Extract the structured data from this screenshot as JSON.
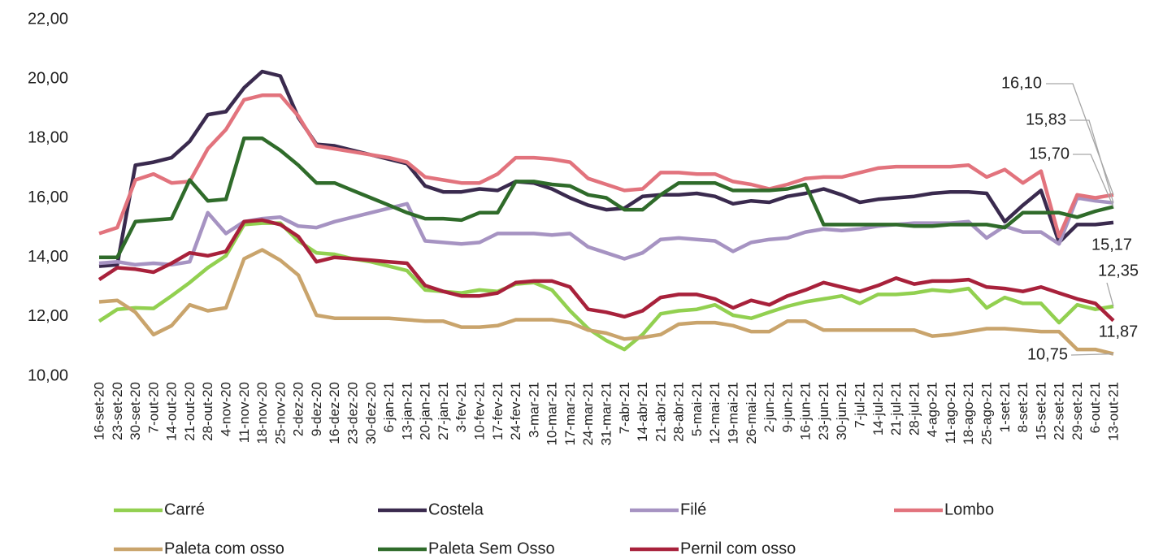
{
  "chart_data": {
    "type": "line",
    "categories": [
      "16-set-20",
      "23-set-20",
      "30-set-20",
      "7-out-20",
      "14-out-20",
      "21-out-20",
      "28-out-20",
      "4-nov-20",
      "11-nov-20",
      "18-nov-20",
      "25-nov-20",
      "2-dez-20",
      "9-dez-20",
      "16-dez-20",
      "23-dez-20",
      "30-dez-20",
      "6-jan-21",
      "13-jan-21",
      "20-jan-21",
      "27-jan-21",
      "3-fev-21",
      "10-fev-21",
      "17-fev-21",
      "24-fev-21",
      "3-mar-21",
      "10-mar-21",
      "17-mar-21",
      "24-mar-21",
      "31-mar-21",
      "7-abr-21",
      "14-abr-21",
      "21-abr-21",
      "28-abr-21",
      "5-mai-21",
      "12-mai-21",
      "19-mai-21",
      "26-mai-21",
      "2-jun-21",
      "9-jun-21",
      "16-jun-21",
      "23-jun-21",
      "30-jun-21",
      "7-jul-21",
      "14-jul-21",
      "21-jul-21",
      "28-jul-21",
      "4-ago-21",
      "11-ago-21",
      "18-ago-21",
      "25-ago-21",
      "1-set-21",
      "8-set-21",
      "15-set-21",
      "22-set-21",
      "29-set-21",
      "6-out-21",
      "13-out-21"
    ],
    "ylim": [
      10,
      22
    ],
    "yticks": [
      {
        "value": 10,
        "label": "10,00"
      },
      {
        "value": 12,
        "label": "12,00"
      },
      {
        "value": 14,
        "label": "14,00"
      },
      {
        "value": 16,
        "label": "16,00"
      },
      {
        "value": 18,
        "label": "18,00"
      },
      {
        "value": 20,
        "label": "20,00"
      },
      {
        "value": 22,
        "label": "22,00"
      }
    ],
    "grid": false,
    "legend": "bottom",
    "series": [
      {
        "name": "Carré",
        "color": "#92d050",
        "values": [
          11.85,
          12.25,
          12.3,
          12.28,
          12.7,
          13.15,
          13.65,
          14.05,
          15.1,
          15.15,
          15.15,
          14.55,
          14.15,
          14.1,
          13.95,
          13.85,
          13.7,
          13.55,
          12.9,
          12.85,
          12.8,
          12.9,
          12.85,
          13.1,
          13.15,
          12.9,
          12.2,
          11.6,
          11.2,
          10.9,
          11.4,
          12.1,
          12.2,
          12.25,
          12.4,
          12.05,
          11.95,
          12.15,
          12.35,
          12.5,
          12.6,
          12.7,
          12.45,
          12.75,
          12.75,
          12.8,
          12.9,
          12.85,
          12.95,
          12.3,
          12.65,
          12.45,
          12.45,
          11.8,
          12.4,
          12.25,
          12.35
        ],
        "value_labels": [
          null,
          null,
          null,
          null,
          null,
          null,
          null,
          null,
          null,
          null,
          null,
          null,
          null,
          null,
          null,
          null,
          null,
          null,
          null,
          null,
          null,
          null,
          null,
          null,
          null,
          null,
          null,
          null,
          null,
          null,
          null,
          null,
          null,
          null,
          null,
          null,
          null,
          null,
          null,
          null,
          null,
          null,
          null,
          null,
          null,
          null,
          null,
          null,
          null,
          null,
          null,
          null,
          null,
          null,
          null,
          null,
          "12,35"
        ]
      },
      {
        "name": "Costela",
        "color": "#3a2a4e",
        "values": [
          13.7,
          13.75,
          17.1,
          17.2,
          17.35,
          17.9,
          18.8,
          18.9,
          19.7,
          20.25,
          20.1,
          18.7,
          17.8,
          17.75,
          17.6,
          17.45,
          17.3,
          17.15,
          16.4,
          16.2,
          16.2,
          16.3,
          16.25,
          16.55,
          16.5,
          16.3,
          16.0,
          15.75,
          15.6,
          15.65,
          16.05,
          16.1,
          16.1,
          16.15,
          16.05,
          15.8,
          15.9,
          15.85,
          16.05,
          16.15,
          16.3,
          16.1,
          15.85,
          15.95,
          16.0,
          16.05,
          16.15,
          16.2,
          16.2,
          16.15,
          15.2,
          15.75,
          16.25,
          14.5,
          15.1,
          15.1,
          15.17
        ],
        "value_labels": [
          null,
          null,
          null,
          null,
          null,
          null,
          null,
          null,
          null,
          null,
          null,
          null,
          null,
          null,
          null,
          null,
          null,
          null,
          null,
          null,
          null,
          null,
          null,
          null,
          null,
          null,
          null,
          null,
          null,
          null,
          null,
          null,
          null,
          null,
          null,
          null,
          null,
          null,
          null,
          null,
          null,
          null,
          null,
          null,
          null,
          null,
          null,
          null,
          null,
          null,
          null,
          null,
          null,
          null,
          null,
          null,
          "15,17"
        ]
      },
      {
        "name": "Filé",
        "color": "#a693c2",
        "values": [
          13.8,
          13.85,
          13.75,
          13.8,
          13.75,
          13.85,
          15.5,
          14.8,
          15.2,
          15.3,
          15.35,
          15.05,
          15.0,
          15.2,
          15.35,
          15.5,
          15.65,
          15.8,
          14.55,
          14.5,
          14.45,
          14.5,
          14.8,
          14.8,
          14.8,
          14.75,
          14.8,
          14.35,
          14.15,
          13.95,
          14.15,
          14.6,
          14.65,
          14.6,
          14.55,
          14.2,
          14.5,
          14.6,
          14.65,
          14.85,
          14.95,
          14.9,
          14.95,
          15.05,
          15.1,
          15.15,
          15.15,
          15.15,
          15.2,
          14.65,
          15.05,
          14.85,
          14.85,
          14.45,
          16.0,
          15.9,
          15.83
        ],
        "value_labels": [
          null,
          null,
          null,
          null,
          null,
          null,
          null,
          null,
          null,
          null,
          null,
          null,
          null,
          null,
          null,
          null,
          null,
          null,
          null,
          null,
          null,
          null,
          null,
          null,
          null,
          null,
          null,
          null,
          null,
          null,
          null,
          null,
          null,
          null,
          null,
          null,
          null,
          null,
          null,
          null,
          null,
          null,
          null,
          null,
          null,
          null,
          null,
          null,
          null,
          null,
          null,
          null,
          null,
          null,
          null,
          null,
          "15,83"
        ]
      },
      {
        "name": "Lombo",
        "color": "#e2737d",
        "values": [
          14.8,
          15.0,
          16.6,
          16.8,
          16.5,
          16.55,
          17.65,
          18.3,
          19.3,
          19.45,
          19.45,
          18.75,
          17.75,
          17.65,
          17.55,
          17.45,
          17.35,
          17.2,
          16.7,
          16.6,
          16.5,
          16.5,
          16.8,
          17.35,
          17.35,
          17.3,
          17.2,
          16.65,
          16.45,
          16.25,
          16.3,
          16.85,
          16.85,
          16.8,
          16.8,
          16.55,
          16.45,
          16.3,
          16.45,
          16.65,
          16.7,
          16.7,
          16.85,
          17.0,
          17.05,
          17.05,
          17.05,
          17.05,
          17.1,
          16.7,
          16.95,
          16.5,
          16.9,
          14.7,
          16.1,
          16.0,
          16.1
        ],
        "value_labels": [
          null,
          null,
          null,
          null,
          null,
          null,
          null,
          null,
          null,
          null,
          null,
          null,
          null,
          null,
          null,
          null,
          null,
          null,
          null,
          null,
          null,
          null,
          null,
          null,
          null,
          null,
          null,
          null,
          null,
          null,
          null,
          null,
          null,
          null,
          null,
          null,
          null,
          null,
          null,
          null,
          null,
          null,
          null,
          null,
          null,
          null,
          null,
          null,
          null,
          null,
          null,
          null,
          null,
          null,
          null,
          null,
          "16,10"
        ]
      },
      {
        "name": "Paleta com osso",
        "color": "#c9a46c",
        "values": [
          12.5,
          12.55,
          12.15,
          11.4,
          11.7,
          12.4,
          12.2,
          12.3,
          13.95,
          14.25,
          13.9,
          13.4,
          12.05,
          11.95,
          11.95,
          11.95,
          11.95,
          11.9,
          11.85,
          11.85,
          11.65,
          11.65,
          11.7,
          11.9,
          11.9,
          11.9,
          11.8,
          11.55,
          11.45,
          11.25,
          11.3,
          11.4,
          11.75,
          11.8,
          11.8,
          11.7,
          11.5,
          11.5,
          11.85,
          11.85,
          11.55,
          11.55,
          11.55,
          11.55,
          11.55,
          11.55,
          11.35,
          11.4,
          11.5,
          11.6,
          11.6,
          11.55,
          11.5,
          11.5,
          10.9,
          10.9,
          10.75
        ],
        "value_labels": [
          null,
          null,
          null,
          null,
          null,
          null,
          null,
          null,
          null,
          null,
          null,
          null,
          null,
          null,
          null,
          null,
          null,
          null,
          null,
          null,
          null,
          null,
          null,
          null,
          null,
          null,
          null,
          null,
          null,
          null,
          null,
          null,
          null,
          null,
          null,
          null,
          null,
          null,
          null,
          null,
          null,
          null,
          null,
          null,
          null,
          null,
          null,
          null,
          null,
          null,
          null,
          null,
          null,
          null,
          null,
          null,
          "10,75"
        ]
      },
      {
        "name": "Paleta Sem Osso",
        "color": "#2f6b2a",
        "values": [
          14.0,
          14.0,
          15.2,
          15.25,
          15.3,
          16.6,
          15.9,
          15.95,
          18.0,
          18.0,
          17.6,
          17.1,
          16.5,
          16.5,
          16.25,
          16.0,
          15.75,
          15.5,
          15.3,
          15.3,
          15.25,
          15.5,
          15.5,
          16.55,
          16.55,
          16.45,
          16.4,
          16.1,
          16.0,
          15.6,
          15.6,
          16.1,
          16.5,
          16.5,
          16.5,
          16.25,
          16.25,
          16.25,
          16.3,
          16.45,
          15.1,
          15.1,
          15.1,
          15.1,
          15.1,
          15.05,
          15.05,
          15.1,
          15.1,
          15.1,
          15.0,
          15.5,
          15.5,
          15.5,
          15.35,
          15.55,
          15.7
        ],
        "value_labels": [
          null,
          null,
          null,
          null,
          null,
          null,
          null,
          null,
          null,
          null,
          null,
          null,
          null,
          null,
          null,
          null,
          null,
          null,
          null,
          null,
          null,
          null,
          null,
          null,
          null,
          null,
          null,
          null,
          null,
          null,
          null,
          null,
          null,
          null,
          null,
          null,
          null,
          null,
          null,
          null,
          null,
          null,
          null,
          null,
          null,
          null,
          null,
          null,
          null,
          null,
          null,
          null,
          null,
          null,
          null,
          null,
          "15,70"
        ]
      },
      {
        "name": "Pernil com osso",
        "color": "#a8213b",
        "values": [
          13.25,
          13.65,
          13.6,
          13.5,
          13.8,
          14.15,
          14.05,
          14.2,
          15.2,
          15.25,
          15.1,
          14.7,
          13.85,
          14.0,
          13.95,
          13.9,
          13.85,
          13.8,
          13.05,
          12.85,
          12.7,
          12.7,
          12.8,
          13.15,
          13.2,
          13.2,
          13.0,
          12.25,
          12.15,
          12.0,
          12.2,
          12.65,
          12.75,
          12.75,
          12.6,
          12.3,
          12.55,
          12.4,
          12.7,
          12.9,
          13.15,
          13.0,
          12.85,
          13.05,
          13.3,
          13.1,
          13.2,
          13.2,
          13.25,
          13.0,
          12.95,
          12.85,
          13.0,
          12.8,
          12.6,
          12.45,
          11.87
        ],
        "value_labels": [
          null,
          null,
          null,
          null,
          null,
          null,
          null,
          null,
          null,
          null,
          null,
          null,
          null,
          null,
          null,
          null,
          null,
          null,
          null,
          null,
          null,
          null,
          null,
          null,
          null,
          null,
          null,
          null,
          null,
          null,
          null,
          null,
          null,
          null,
          null,
          null,
          null,
          null,
          null,
          null,
          null,
          null,
          null,
          null,
          null,
          null,
          null,
          null,
          null,
          null,
          null,
          null,
          null,
          null,
          null,
          null,
          "11,87"
        ]
      }
    ]
  }
}
